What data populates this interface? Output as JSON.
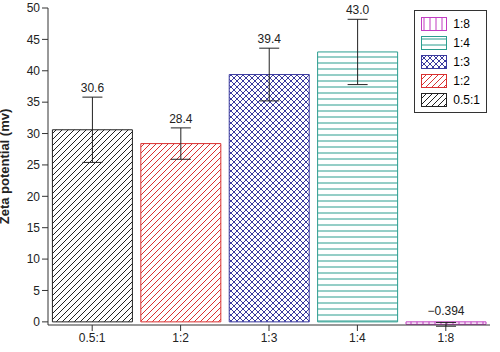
{
  "chart_data": {
    "type": "bar",
    "categories": [
      "0.5:1",
      "1:2",
      "1:3",
      "1:4",
      "1:8"
    ],
    "values": [
      30.6,
      28.4,
      39.4,
      43.0,
      -0.394
    ],
    "value_labels": [
      "30.6",
      "28.4",
      "39.4",
      "43.0",
      "−0.394"
    ],
    "errors": [
      5.2,
      2.5,
      4.2,
      5.2,
      0.3
    ],
    "colors": [
      "#222222",
      "#d93030",
      "#3a3a9e",
      "#2a9d8f",
      "#c23cc2"
    ],
    "ylabel": "Zeta potential (mv)",
    "ylim": [
      -0.5,
      50
    ],
    "yticks": [
      0,
      5,
      10,
      15,
      20,
      25,
      30,
      35,
      40,
      45,
      50
    ],
    "data_labels": true,
    "legend": "upper right",
    "grid": false
  }
}
